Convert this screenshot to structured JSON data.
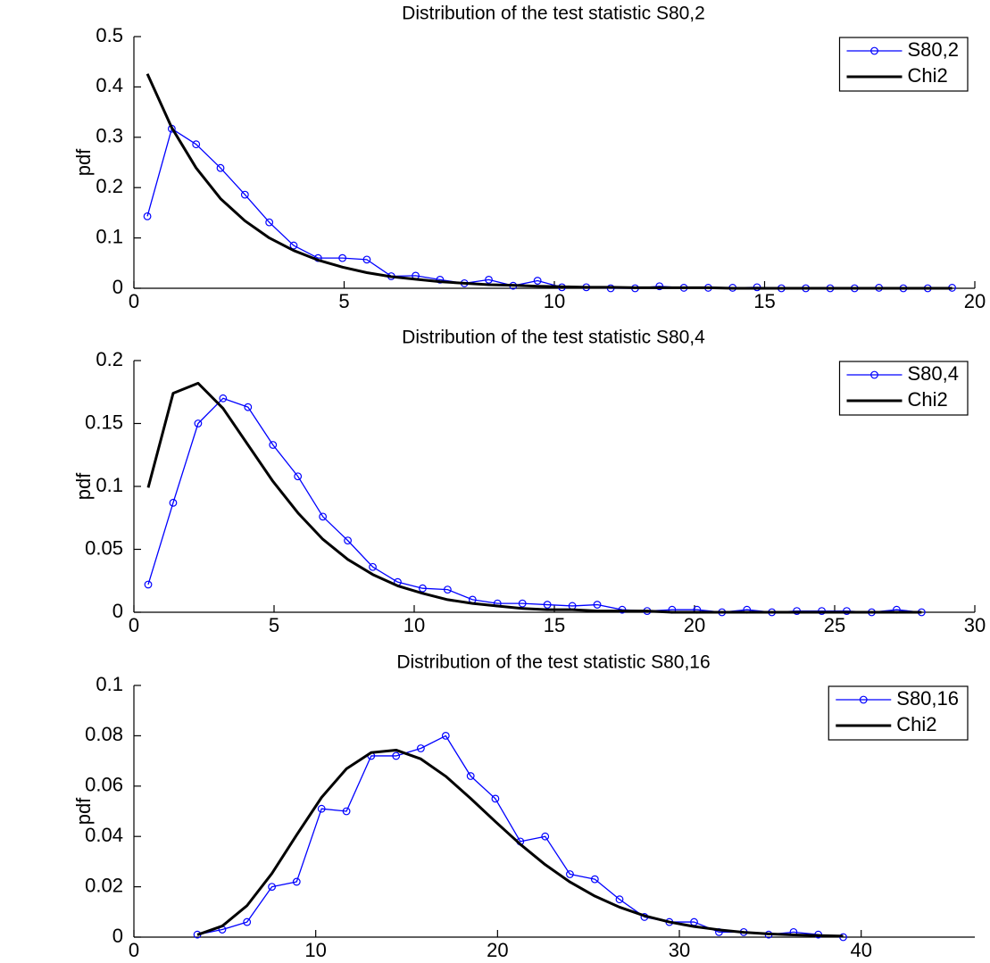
{
  "chart_data": [
    {
      "type": "line",
      "title": "Distribution of the test statistic S80,2",
      "ylabel": "pdf",
      "x": [
        0.32,
        0.9,
        1.48,
        2.06,
        2.64,
        3.22,
        3.8,
        4.38,
        4.96,
        5.54,
        6.12,
        6.7,
        7.28,
        7.86,
        8.44,
        9.02,
        9.6,
        10.18,
        10.76,
        11.34,
        11.92,
        12.5,
        13.08,
        13.66,
        14.24,
        14.82,
        15.4,
        15.98,
        16.56,
        17.14,
        17.72,
        18.3,
        18.88,
        19.46
      ],
      "series": [
        {
          "name": "S80,2",
          "color": "#0000ff",
          "marker": "circle",
          "values": [
            0.143,
            0.317,
            0.286,
            0.239,
            0.186,
            0.131,
            0.085,
            0.06,
            0.06,
            0.057,
            0.024,
            0.025,
            0.017,
            0.01,
            0.017,
            0.005,
            0.015,
            0.002,
            0.002,
            0,
            0,
            0.004,
            0.001,
            0.001,
            0.001,
            0.002,
            0,
            0,
            0,
            0,
            0.001,
            0,
            0,
            0.001
          ]
        },
        {
          "name": "Chi2",
          "color": "#000000",
          "values": [
            0.426,
            0.319,
            0.239,
            0.178,
            0.134,
            0.1,
            0.075,
            0.056,
            0.042,
            0.031,
            0.023,
            0.018,
            0.013,
            0.01,
            0.007,
            0.006,
            0.004,
            0.003,
            0.002,
            0.002,
            0.001,
            0.001,
            0.001,
            0.001,
            0,
            0,
            0,
            0,
            0,
            0,
            0,
            0,
            0,
            0
          ]
        }
      ],
      "xlim": [
        0,
        20
      ],
      "xticks": [
        0,
        5,
        10,
        15,
        20
      ],
      "ylim": [
        0,
        0.5
      ],
      "yticks": [
        0,
        0.1,
        0.2,
        0.3,
        0.4,
        0.5
      ],
      "legend": "upper right"
    },
    {
      "type": "line",
      "title": "Distribution of the test statistic S80,4",
      "ylabel": "pdf",
      "x": [
        0.51,
        1.4,
        2.29,
        3.18,
        4.07,
        4.96,
        5.85,
        6.74,
        7.63,
        8.52,
        9.41,
        10.3,
        11.19,
        12.08,
        12.97,
        13.86,
        14.75,
        15.64,
        16.53,
        17.42,
        18.31,
        19.2,
        20.09,
        20.98,
        21.87,
        22.76,
        23.65,
        24.54,
        25.43,
        26.32,
        27.21,
        28.1
      ],
      "series": [
        {
          "name": "S80,4",
          "color": "#0000ff",
          "marker": "circle",
          "values": [
            0.022,
            0.087,
            0.15,
            0.17,
            0.163,
            0.133,
            0.108,
            0.076,
            0.057,
            0.036,
            0.024,
            0.019,
            0.018,
            0.01,
            0.007,
            0.007,
            0.006,
            0.005,
            0.006,
            0.002,
            0.001,
            0.002,
            0.002,
            0,
            0.002,
            0,
            0.001,
            0.001,
            0.001,
            0,
            0.002,
            0
          ]
        },
        {
          "name": "Chi2",
          "color": "#000000",
          "values": [
            0.099,
            0.174,
            0.182,
            0.162,
            0.133,
            0.104,
            0.079,
            0.058,
            0.042,
            0.03,
            0.021,
            0.015,
            0.01,
            0.007,
            0.005,
            0.003,
            0.002,
            0.002,
            0.001,
            0.001,
            0.001,
            0,
            0,
            0,
            0,
            0,
            0,
            0,
            0,
            0,
            0,
            0
          ]
        }
      ],
      "xlim": [
        0,
        30
      ],
      "xticks": [
        0,
        5,
        10,
        15,
        20,
        25,
        30
      ],
      "ylim": [
        0,
        0.2
      ],
      "yticks": [
        0,
        0.05,
        0.1,
        0.15,
        0.2
      ],
      "legend": "upper right"
    },
    {
      "type": "line",
      "title": "Distribution of the test statistic S80,16",
      "ylabel": "pdf",
      "x": [
        3.49,
        4.86,
        6.22,
        7.59,
        8.95,
        10.32,
        11.69,
        13.05,
        14.42,
        15.78,
        17.15,
        18.52,
        19.88,
        21.25,
        22.62,
        23.98,
        25.35,
        26.71,
        28.08,
        29.45,
        30.81,
        32.18,
        33.54,
        34.91,
        36.28,
        37.64,
        39.01
      ],
      "series": [
        {
          "name": "S80,16",
          "color": "#0000ff",
          "marker": "circle",
          "values": [
            0.001,
            0.003,
            0.006,
            0.02,
            0.022,
            0.051,
            0.05,
            0.072,
            0.072,
            0.075,
            0.08,
            0.064,
            0.055,
            0.038,
            0.04,
            0.025,
            0.023,
            0.015,
            0.008,
            0.006,
            0.006,
            0.002,
            0.002,
            0.001,
            0.002,
            0.001,
            0
          ]
        },
        {
          "name": "Chi2",
          "color": "#000000",
          "values": [
            0.0009,
            0.0044,
            0.0125,
            0.0253,
            0.0406,
            0.0555,
            0.0669,
            0.0733,
            0.0743,
            0.0708,
            0.0639,
            0.0551,
            0.0459,
            0.0369,
            0.0288,
            0.0219,
            0.0163,
            0.0119,
            0.0085,
            0.006,
            0.0042,
            0.0029,
            0.0019,
            0.0013,
            0.0009,
            0.0006,
            0.0004
          ]
        }
      ],
      "xlim": [
        0,
        46.25
      ],
      "xticks": [
        0,
        10,
        20,
        30,
        40
      ],
      "ylim": [
        0,
        0.1
      ],
      "yticks": [
        0,
        0.02,
        0.04,
        0.06,
        0.08,
        0.1
      ],
      "legend": "upper right"
    }
  ]
}
